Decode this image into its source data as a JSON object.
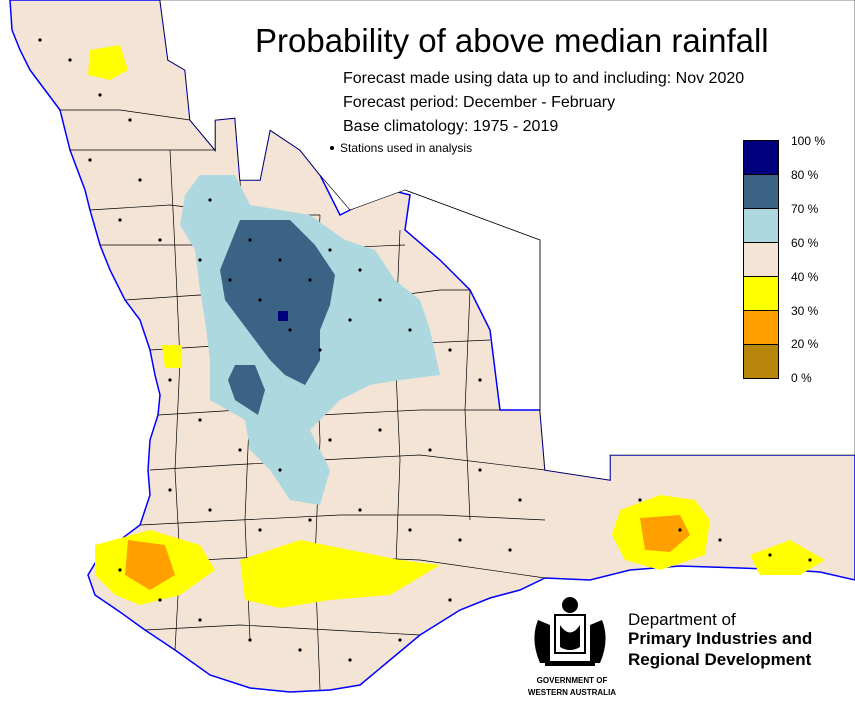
{
  "title": "Probability of above median rainfall",
  "subtitle_lines": [
    "Forecast made using data up to and including: Nov 2020",
    "Forecast period: December - February",
    "Base climatology: 1975 - 2019"
  ],
  "stations_legend": "Stations used in analysis",
  "scale": [
    {
      "label": "100 %",
      "color": "#00007f"
    },
    {
      "label": "80 %",
      "color": "#3b6385"
    },
    {
      "label": "70 %",
      "color": "#add8e0"
    },
    {
      "label": "60 %",
      "color": "#f3e4d6"
    },
    {
      "label": "40 %",
      "color": "#ffff00"
    },
    {
      "label": "30 %",
      "color": "#ff9f00"
    },
    {
      "label": "20 %",
      "color": "#b8860b"
    },
    {
      "label": "0 %",
      "color": ""
    }
  ],
  "department": {
    "line1": "Department of",
    "line2": "Primary Industries and",
    "line3": "Regional Development"
  },
  "government": {
    "line1": "GOVERNMENT OF",
    "line2": "WESTERN AUSTRALIA"
  },
  "colors": {
    "land": "#f3e4d6",
    "coast": "#0000ff",
    "boundary": "#000000"
  }
}
